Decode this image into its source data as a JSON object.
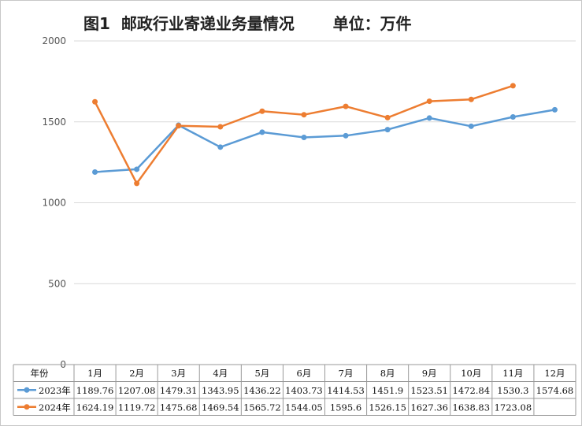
{
  "title": "图1  邮政行业寄递业务量情况       单位：万件",
  "chart_data": {
    "type": "line",
    "categories": [
      "1月",
      "2月",
      "3月",
      "4月",
      "5月",
      "6月",
      "7月",
      "8月",
      "9月",
      "10月",
      "11月",
      "12月"
    ],
    "category_header": "年份",
    "series": [
      {
        "name": "2023年",
        "color": "#5b9bd5",
        "values": [
          1189.76,
          1207.08,
          1479.31,
          1343.95,
          1436.22,
          1403.73,
          1414.53,
          1451.9,
          1523.51,
          1472.84,
          1530.3,
          1574.68
        ]
      },
      {
        "name": "2024年",
        "color": "#ed7d31",
        "values": [
          1624.19,
          1119.72,
          1475.68,
          1469.54,
          1565.72,
          1544.05,
          1595.6,
          1526.15,
          1627.36,
          1638.83,
          1723.08,
          null
        ]
      }
    ],
    "value_labels": [
      [
        "1189.76",
        "1207.08",
        "1479.31",
        "1343.95",
        "1436.22",
        "1403.73",
        "1414.53",
        "1451.9",
        "1523.51",
        "1472.84",
        "1530.3",
        "1574.68"
      ],
      [
        "1624.19",
        "1119.72",
        "1475.68",
        "1469.54",
        "1565.72",
        "1544.05",
        "1595.6",
        "1526.15",
        "1627.36",
        "1638.83",
        "1723.08",
        ""
      ]
    ],
    "yticks": [
      0,
      500,
      1000,
      1500,
      2000
    ],
    "ylim": [
      0,
      2000
    ],
    "grid": true,
    "legend": "data-table"
  }
}
